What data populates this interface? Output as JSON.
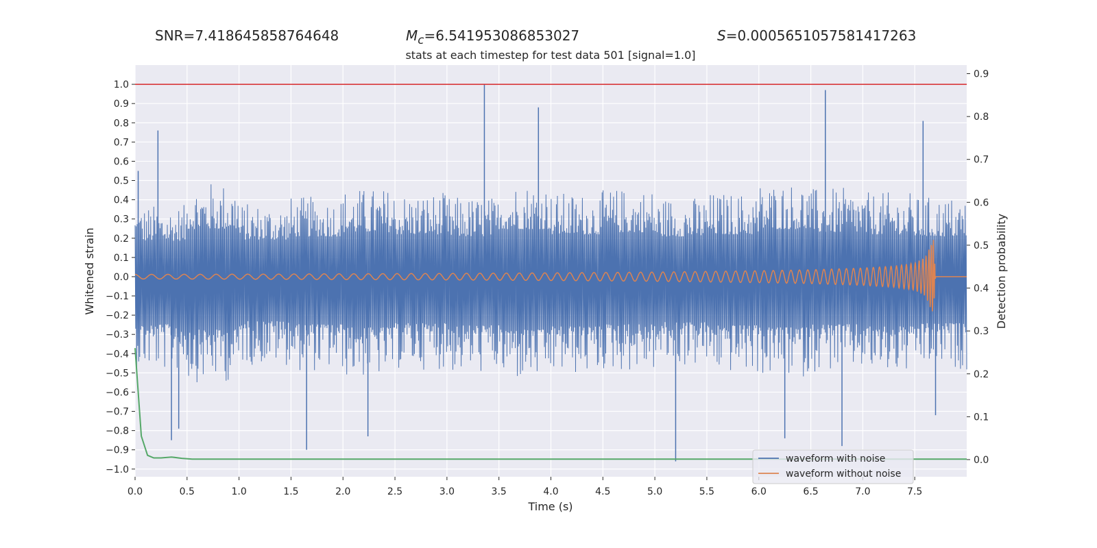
{
  "header": {
    "snr_label": "SNR=",
    "snr_value": "7.418645858764648",
    "mc_symbol": "M",
    "mc_subscript": "c",
    "mc_value": "=6.541953086853027",
    "s_symbol": "S",
    "s_value": "=0.0005651057581417263"
  },
  "chart_data": {
    "type": "line",
    "title": "stats at each timestep for test data 501 [signal=1.0]",
    "xlabel": "Time (s)",
    "ylabel": "Whitened strain",
    "y2label": "Detection probability",
    "xlim": [
      0.0,
      8.0
    ],
    "ylim": [
      -1.04,
      1.1
    ],
    "y2lim": [
      -0.04,
      0.92
    ],
    "xticks": [
      "0.0",
      "0.5",
      "1.0",
      "1.5",
      "2.0",
      "2.5",
      "3.0",
      "3.5",
      "4.0",
      "4.5",
      "5.0",
      "5.5",
      "6.0",
      "6.5",
      "7.0",
      "7.5"
    ],
    "yticks": [
      "-1.0",
      "-0.9",
      "-0.8",
      "-0.7",
      "-0.6",
      "-0.5",
      "-0.4",
      "-0.3",
      "-0.2",
      "-0.1",
      "0.0",
      "0.1",
      "0.2",
      "0.3",
      "0.4",
      "0.5",
      "0.6",
      "0.7",
      "0.8",
      "0.9",
      "1.0"
    ],
    "y2ticks": [
      "0.0",
      "0.1",
      "0.2",
      "0.3",
      "0.4",
      "0.5",
      "0.6",
      "0.7",
      "0.8",
      "0.9"
    ],
    "threshold": {
      "y": 1.0,
      "color": "#d62728"
    },
    "series": [
      {
        "name": "waveform with noise",
        "color": "#4c72b0",
        "axis": "left",
        "envelope_positive": [
          0.34,
          0.45,
          0.35,
          0.38,
          0.42,
          0.4,
          0.38,
          0.45,
          0.4,
          0.42,
          0.38,
          0.4,
          0.45,
          0.42,
          0.4,
          0.38
        ],
        "envelope_negative": [
          -0.45,
          -0.5,
          -0.42,
          -0.45,
          -0.48,
          -0.44,
          -0.46,
          -0.5,
          -0.47,
          -0.45,
          -0.43,
          -0.46,
          -0.48,
          -0.45,
          -0.47,
          -0.44
        ],
        "spikes": [
          [
            0.03,
            0.55
          ],
          [
            0.22,
            0.76
          ],
          [
            0.35,
            -0.85
          ],
          [
            0.42,
            -0.79
          ],
          [
            1.02,
            -0.08
          ],
          [
            1.65,
            -0.9
          ],
          [
            2.24,
            -0.83
          ],
          [
            3.36,
            1.0
          ],
          [
            3.88,
            0.88
          ],
          [
            5.2,
            -0.96
          ],
          [
            6.25,
            -0.84
          ],
          [
            6.64,
            0.97
          ],
          [
            6.8,
            -0.88
          ],
          [
            7.58,
            0.81
          ],
          [
            7.7,
            -0.72
          ]
        ]
      },
      {
        "name": "waveform without noise",
        "color": "#dd8452",
        "axis": "left",
        "x": [
          0.0,
          1.0,
          2.0,
          3.0,
          4.0,
          5.0,
          6.0,
          6.5,
          7.0,
          7.3,
          7.5,
          7.6,
          7.68,
          7.7,
          8.0
        ],
        "amplitude": [
          0.012,
          0.013,
          0.015,
          0.017,
          0.02,
          0.024,
          0.031,
          0.036,
          0.045,
          0.055,
          0.07,
          0.1,
          0.2,
          0.0,
          0.0
        ]
      },
      {
        "name": "detection probability",
        "color": "#55a868",
        "axis": "right",
        "x": [
          0.0,
          0.06,
          0.12,
          0.18,
          0.25,
          0.35,
          0.45,
          0.55,
          1.0,
          5.0,
          8.0
        ],
        "y": [
          0.26,
          0.055,
          0.01,
          0.004,
          0.004,
          0.006,
          0.003,
          0.001,
          0.001,
          0.001,
          0.001
        ]
      }
    ],
    "legend": {
      "placement": "bottom-right",
      "entries": [
        "waveform with noise",
        "waveform without noise"
      ]
    }
  }
}
